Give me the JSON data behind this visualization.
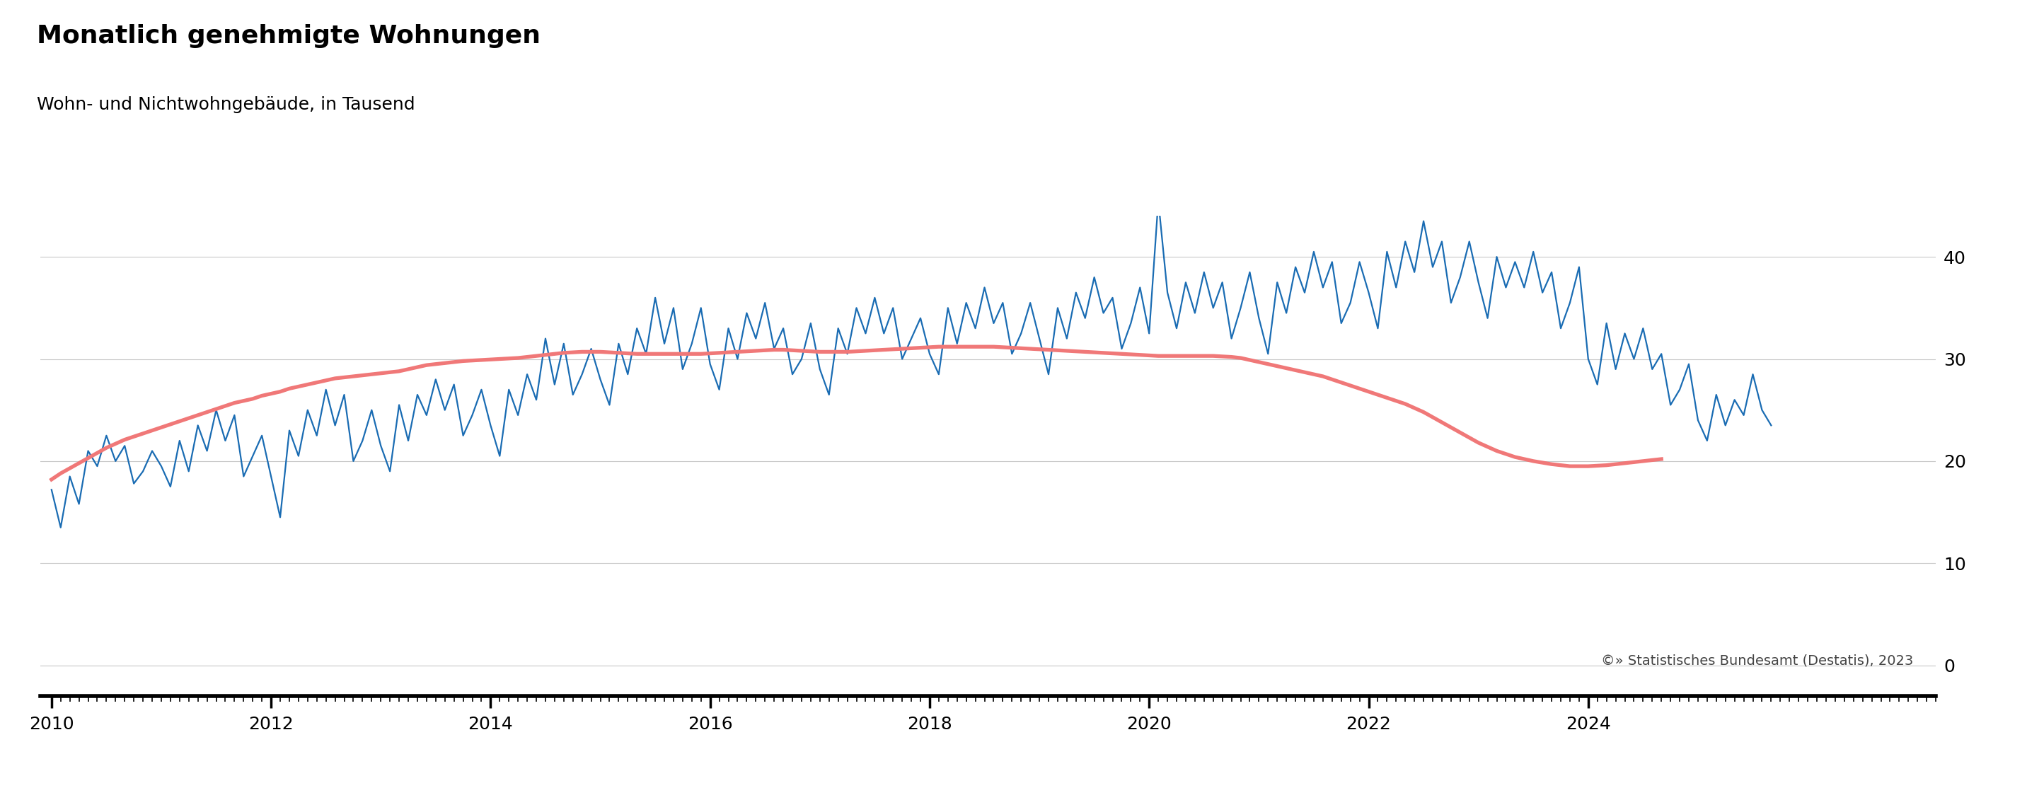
{
  "title": "Monatlich genehmigte Wohnungen",
  "subtitle": "Wohn- und Nichtwohngebäude, in Tausend",
  "copyright": "©» Statistisches Bundesamt (Destatis), 2023",
  "ylabel_right_ticks": [
    0,
    10,
    20,
    30,
    40
  ],
  "xlim_start": 2009.9,
  "xlim_end": 2024.1,
  "ylim_bottom": -3,
  "ylim_top": 44,
  "blue_color": "#1A6CB3",
  "pink_color": "#F07878",
  "background_color": "#FFFFFF",
  "grid_color": "#C8C8C8",
  "title_fontsize": 26,
  "subtitle_fontsize": 18,
  "tick_fontsize": 18,
  "legend_fontsize": 18,
  "copyright_fontsize": 14,
  "raw_values": [
    17.2,
    13.5,
    18.5,
    15.8,
    21.0,
    19.5,
    22.5,
    20.0,
    21.5,
    17.8,
    19.0,
    21.0,
    19.5,
    17.5,
    22.0,
    19.0,
    23.5,
    21.0,
    25.0,
    22.0,
    24.5,
    18.5,
    20.5,
    22.5,
    18.5,
    14.5,
    23.0,
    20.5,
    25.0,
    22.5,
    27.0,
    23.5,
    26.5,
    20.0,
    22.0,
    25.0,
    21.5,
    19.0,
    25.5,
    22.0,
    26.5,
    24.5,
    28.0,
    25.0,
    27.5,
    22.5,
    24.5,
    27.0,
    23.5,
    20.5,
    27.0,
    24.5,
    28.5,
    26.0,
    32.0,
    27.5,
    31.5,
    26.5,
    28.5,
    31.0,
    28.0,
    25.5,
    31.5,
    28.5,
    33.0,
    30.5,
    36.0,
    31.5,
    35.0,
    29.0,
    31.5,
    35.0,
    29.5,
    27.0,
    33.0,
    30.0,
    34.5,
    32.0,
    35.5,
    31.0,
    33.0,
    28.5,
    30.0,
    33.5,
    29.0,
    26.5,
    33.0,
    30.5,
    35.0,
    32.5,
    36.0,
    32.5,
    35.0,
    30.0,
    32.0,
    34.0,
    30.5,
    28.5,
    35.0,
    31.5,
    35.5,
    33.0,
    37.0,
    33.5,
    35.5,
    30.5,
    32.5,
    35.5,
    32.0,
    28.5,
    35.0,
    32.0,
    36.5,
    34.0,
    38.0,
    34.5,
    36.0,
    31.0,
    33.5,
    37.0,
    32.5,
    45.5,
    36.5,
    33.0,
    37.5,
    34.5,
    38.5,
    35.0,
    37.5,
    32.0,
    35.0,
    38.5,
    34.0,
    30.5,
    37.5,
    34.5,
    39.0,
    36.5,
    40.5,
    37.0,
    39.5,
    33.5,
    35.5,
    39.5,
    36.5,
    33.0,
    40.5,
    37.0,
    41.5,
    38.5,
    43.5,
    39.0,
    41.5,
    35.5,
    38.0,
    41.5,
    37.5,
    34.0,
    40.0,
    37.0,
    39.5,
    37.0,
    40.5,
    36.5,
    38.5,
    33.0,
    35.5,
    39.0,
    30.0,
    27.5,
    33.5,
    29.0,
    32.5,
    30.0,
    33.0,
    29.0,
    30.5,
    25.5,
    27.0,
    29.5,
    24.0,
    22.0,
    26.5,
    23.5,
    26.0,
    24.5,
    28.5,
    25.0,
    23.5
  ],
  "trend_values": [
    18.2,
    18.8,
    19.3,
    19.8,
    20.3,
    20.8,
    21.3,
    21.7,
    22.1,
    22.4,
    22.7,
    23.0,
    23.3,
    23.6,
    23.9,
    24.2,
    24.5,
    24.8,
    25.1,
    25.4,
    25.7,
    25.9,
    26.1,
    26.4,
    26.6,
    26.8,
    27.1,
    27.3,
    27.5,
    27.7,
    27.9,
    28.1,
    28.2,
    28.3,
    28.4,
    28.5,
    28.6,
    28.7,
    28.8,
    29.0,
    29.2,
    29.4,
    29.5,
    29.6,
    29.7,
    29.8,
    29.85,
    29.9,
    29.95,
    30.0,
    30.05,
    30.1,
    30.2,
    30.3,
    30.4,
    30.5,
    30.6,
    30.65,
    30.7,
    30.7,
    30.7,
    30.65,
    30.6,
    30.55,
    30.5,
    30.5,
    30.5,
    30.5,
    30.5,
    30.5,
    30.5,
    30.5,
    30.55,
    30.6,
    30.65,
    30.7,
    30.75,
    30.8,
    30.85,
    30.9,
    30.9,
    30.85,
    30.8,
    30.75,
    30.7,
    30.7,
    30.7,
    30.7,
    30.75,
    30.8,
    30.85,
    30.9,
    30.95,
    31.0,
    31.05,
    31.1,
    31.15,
    31.2,
    31.2,
    31.2,
    31.2,
    31.2,
    31.2,
    31.2,
    31.15,
    31.1,
    31.05,
    31.0,
    30.95,
    30.9,
    30.85,
    30.8,
    30.75,
    30.7,
    30.65,
    30.6,
    30.55,
    30.5,
    30.45,
    30.4,
    30.35,
    30.3,
    30.3,
    30.3,
    30.3,
    30.3,
    30.3,
    30.3,
    30.25,
    30.2,
    30.1,
    29.9,
    29.7,
    29.5,
    29.3,
    29.1,
    28.9,
    28.7,
    28.5,
    28.3,
    28.0,
    27.7,
    27.4,
    27.1,
    26.8,
    26.5,
    26.2,
    25.9,
    25.6,
    25.2,
    24.8,
    24.3,
    23.8,
    23.3,
    22.8,
    22.3,
    21.8,
    21.4,
    21.0,
    20.7,
    20.4,
    20.2,
    20.0,
    19.85,
    19.7,
    19.6,
    19.5,
    19.5,
    19.5,
    19.55,
    19.6,
    19.7,
    19.8,
    19.9,
    20.0,
    20.1,
    20.2
  ],
  "xtick_years": [
    2010,
    2012,
    2014,
    2016,
    2018,
    2020,
    2022,
    2024
  ]
}
